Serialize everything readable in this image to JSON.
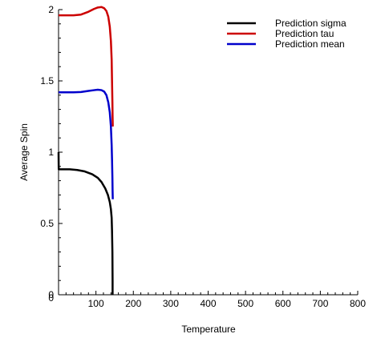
{
  "chart_data": {
    "type": "line",
    "title": "",
    "xlabel": "Temperature",
    "ylabel": "Average Spin",
    "xlim": [
      0,
      800
    ],
    "ylim": [
      0,
      2
    ],
    "x_ticks": [
      100,
      200,
      300,
      400,
      500,
      600,
      700,
      800
    ],
    "x_tick_labels": [
      "100",
      "200",
      "300",
      "400",
      "500",
      "600",
      "700",
      "800"
    ],
    "y_ticks": [
      0,
      0.5,
      1,
      1.5,
      2
    ],
    "y_tick_labels": [
      "0",
      "0.5",
      "1",
      "1.5",
      "2"
    ],
    "x_origin_label": "0",
    "grid": false,
    "legend_position": "top-right",
    "legend": [
      {
        "label": "Prediction sigma",
        "color": "#000000"
      },
      {
        "label": "Prediction tau",
        "color": "#cc0000"
      },
      {
        "label": "Prediction mean",
        "color": "#0000cc"
      }
    ],
    "series": [
      {
        "name": "Prediction sigma",
        "color": "#000000",
        "x": [
          0,
          0.5,
          2,
          10,
          30,
          50,
          70,
          90,
          105,
          115,
          125,
          132,
          137,
          140,
          142,
          143,
          144,
          144.5,
          144.5
        ],
        "y": [
          1.0,
          0.88,
          0.88,
          0.88,
          0.88,
          0.875,
          0.865,
          0.845,
          0.82,
          0.79,
          0.745,
          0.7,
          0.65,
          0.6,
          0.54,
          0.45,
          0.3,
          0.1,
          0
        ]
      },
      {
        "name": "Prediction tau",
        "color": "#cc0000",
        "x": [
          0,
          20,
          40,
          60,
          80,
          95,
          105,
          115,
          122,
          128,
          133,
          137,
          140,
          142,
          143,
          144,
          144.5,
          145
        ],
        "y": [
          1.96,
          1.96,
          1.96,
          1.965,
          1.985,
          2.005,
          2.015,
          2.018,
          2.01,
          1.99,
          1.95,
          1.88,
          1.78,
          1.65,
          1.5,
          1.35,
          1.25,
          1.18
        ]
      },
      {
        "name": "Prediction mean",
        "color": "#0000cc",
        "x": [
          0,
          20,
          40,
          60,
          80,
          95,
          105,
          115,
          122,
          128,
          133,
          137,
          140,
          142,
          143,
          144,
          144.5,
          145
        ],
        "y": [
          1.42,
          1.42,
          1.42,
          1.422,
          1.43,
          1.435,
          1.438,
          1.435,
          1.425,
          1.4,
          1.35,
          1.28,
          1.18,
          1.05,
          0.95,
          0.82,
          0.73,
          0.67
        ]
      }
    ]
  }
}
